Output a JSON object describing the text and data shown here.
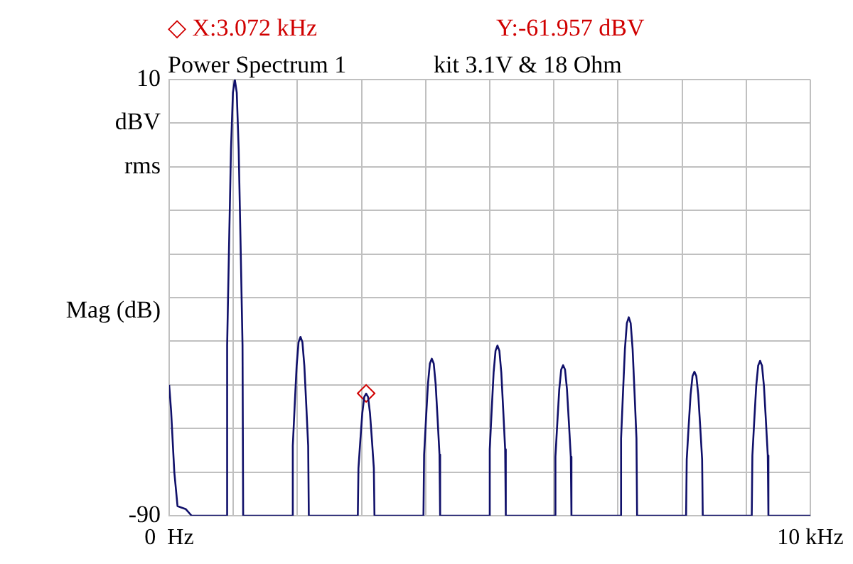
{
  "chart_data": {
    "type": "line",
    "title": "Power Spectrum 1",
    "subtitle": "kit 3.1V & 18 Ohm",
    "ylabel": "Mag (dB)",
    "annotations": [
      "◇ X:3.072 kHz",
      "Y:-61.957 dBV"
    ],
    "xlim": [
      0,
      10
    ],
    "xticks": [
      {
        "value": 0,
        "label": "0  Hz"
      },
      {
        "value": 1,
        "label": null
      },
      {
        "value": 2,
        "label": null
      },
      {
        "value": 3,
        "label": null
      },
      {
        "value": 4,
        "label": null
      },
      {
        "value": 5,
        "label": null
      },
      {
        "value": 6,
        "label": null
      },
      {
        "value": 7,
        "label": null
      },
      {
        "value": 8,
        "label": null
      },
      {
        "value": 9,
        "label": null
      },
      {
        "value": 10,
        "label": "10 kHz"
      }
    ],
    "ylim": [
      -90,
      10
    ],
    "yticks": [
      {
        "value": -90,
        "label": "-90"
      },
      {
        "value": -80,
        "label": null
      },
      {
        "value": -70,
        "label": null
      },
      {
        "value": -60,
        "label": null
      },
      {
        "value": -50,
        "label": null
      },
      {
        "value": -40,
        "label": null
      },
      {
        "value": -30,
        "label": null
      },
      {
        "value": -20,
        "label": null
      },
      {
        "value": -10,
        "label": "rms"
      },
      {
        "value": 0,
        "label": "dBV"
      },
      {
        "value": 10,
        "label": "10"
      }
    ],
    "grid": true,
    "legend": false,
    "marker": "none",
    "series": [
      {
        "color": "#10106a",
        "x": [
          0,
          0.03,
          0.08,
          0.13,
          0.26,
          0.35,
          0.894,
          0.904,
          0.934,
          0.964,
          0.994,
          1.024,
          1.054,
          1.084,
          1.114,
          1.144,
          1.154,
          1.918,
          1.928,
          1.958,
          1.988,
          2.018,
          2.048,
          2.078,
          2.108,
          2.138,
          2.168,
          2.178,
          2.942,
          2.952,
          2.982,
          3.012,
          3.042,
          3.072,
          3.102,
          3.132,
          3.162,
          3.192,
          3.202,
          3.966,
          3.976,
          4.006,
          4.036,
          4.066,
          4.096,
          4.126,
          4.156,
          4.186,
          4.216,
          4.226,
          4.99,
          5.0,
          5.03,
          5.06,
          5.09,
          5.12,
          5.15,
          5.18,
          5.21,
          5.24,
          5.25,
          6.014,
          6.024,
          6.054,
          6.084,
          6.114,
          6.144,
          6.174,
          6.204,
          6.234,
          6.264,
          6.274,
          7.038,
          7.048,
          7.078,
          7.108,
          7.138,
          7.168,
          7.198,
          7.228,
          7.258,
          7.288,
          7.298,
          8.062,
          8.072,
          8.102,
          8.132,
          8.162,
          8.192,
          8.222,
          8.252,
          8.282,
          8.312,
          8.322,
          9.086,
          9.096,
          9.126,
          9.156,
          9.186,
          9.216,
          9.246,
          9.276,
          9.306,
          9.336,
          9.346,
          10
        ],
        "values": [
          -60,
          -66,
          -80,
          -87.8,
          -88.5,
          -90,
          -90,
          -51,
          -28,
          -6,
          7,
          10,
          7,
          -6,
          -28,
          -51,
          -90,
          -90,
          -74,
          -64.6,
          -55.6,
          -50.2,
          -49,
          -50.2,
          -55.6,
          -64.6,
          -74,
          -90,
          -90,
          -79.1,
          -72.6,
          -66.5,
          -62.8,
          -62,
          -62.8,
          -66.5,
          -72.6,
          -79.1,
          -90,
          -90,
          -76,
          -67.7,
          -59.8,
          -55.1,
          -54,
          -55.1,
          -59.8,
          -67.7,
          -76,
          -90,
          -90,
          -74.8,
          -65.8,
          -57.2,
          -52.2,
          -51,
          -52.2,
          -57.2,
          -65.8,
          -74.8,
          -90,
          -90,
          -76.5,
          -68.6,
          -61,
          -56.5,
          -55.5,
          -56.5,
          -61,
          -68.6,
          -76.5,
          -90,
          -90,
          -72.3,
          -61.8,
          -51.8,
          -45.9,
          -44.5,
          -45.9,
          -51.8,
          -61.8,
          -72.3,
          -90,
          -90,
          -77.1,
          -69.5,
          -62.3,
          -58,
          -57,
          -58,
          -62.3,
          -69.5,
          -77.1,
          -90,
          -90,
          -76.2,
          -68,
          -60.2,
          -55.6,
          -54.5,
          -55.6,
          -60.2,
          -68,
          -76.2,
          -90,
          -90
        ]
      },
      {
        "type": "scatter",
        "color": "#d00000",
        "marker": "diamond",
        "x": [
          3.072
        ],
        "values": [
          -61.957
        ]
      }
    ]
  }
}
